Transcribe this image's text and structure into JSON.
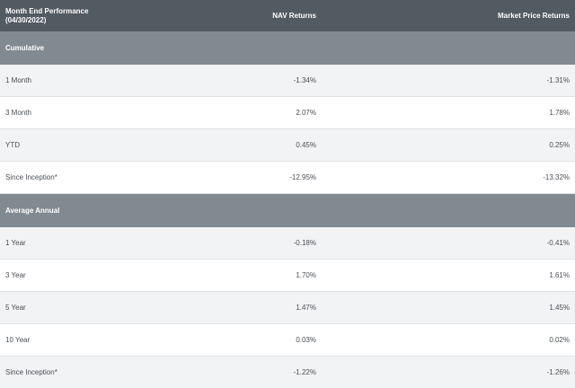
{
  "header": {
    "title_line1": "Month End Performance",
    "title_line2": "(04/30/2022)",
    "nav_col": "NAV Returns",
    "market_col": "Market Price Returns"
  },
  "cumulative": {
    "label": "Cumulative",
    "rows": [
      {
        "period": "1 Month",
        "nav": "-1.34%",
        "market": "-1.31%"
      },
      {
        "period": "3 Month",
        "nav": "2.07%",
        "market": "1.78%"
      },
      {
        "period": "YTD",
        "nav": "0.45%",
        "market": "0.25%"
      },
      {
        "period": "Since Inception*",
        "nav": "-12.95%",
        "market": "-13.32%"
      }
    ]
  },
  "average_annual": {
    "label": "Average Annual",
    "rows": [
      {
        "period": "1 Year",
        "nav": "-0.18%",
        "market": "-0.41%"
      },
      {
        "period": "3 Year",
        "nav": "1.70%",
        "market": "1.61%"
      },
      {
        "period": "5 Year",
        "nav": "1.47%",
        "market": "1.45%"
      },
      {
        "period": "10 Year",
        "nav": "0.03%",
        "market": "0.02%"
      },
      {
        "period": "Since Inception*",
        "nav": "-1.22%",
        "market": "-1.26%"
      }
    ]
  }
}
